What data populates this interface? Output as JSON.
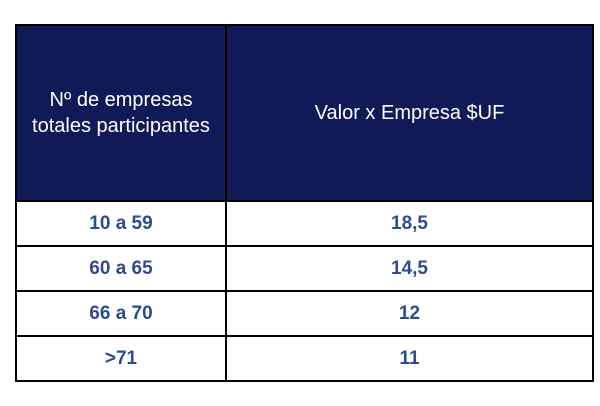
{
  "table": {
    "headers": [
      "Nº de empresas totales participantes",
      "Valor x Empresa $UF"
    ],
    "rows": [
      {
        "range": "10 a 59",
        "value": "18,5"
      },
      {
        "range": "60 a 65",
        "value": "14,5"
      },
      {
        "range": "66 a 70",
        "value": "12"
      },
      {
        "range": ">71",
        "value": "11"
      }
    ],
    "colors": {
      "header_background": "#0f1a57",
      "header_text": "#ffffff",
      "body_text": "#2e4c88",
      "border": "#000000"
    }
  }
}
